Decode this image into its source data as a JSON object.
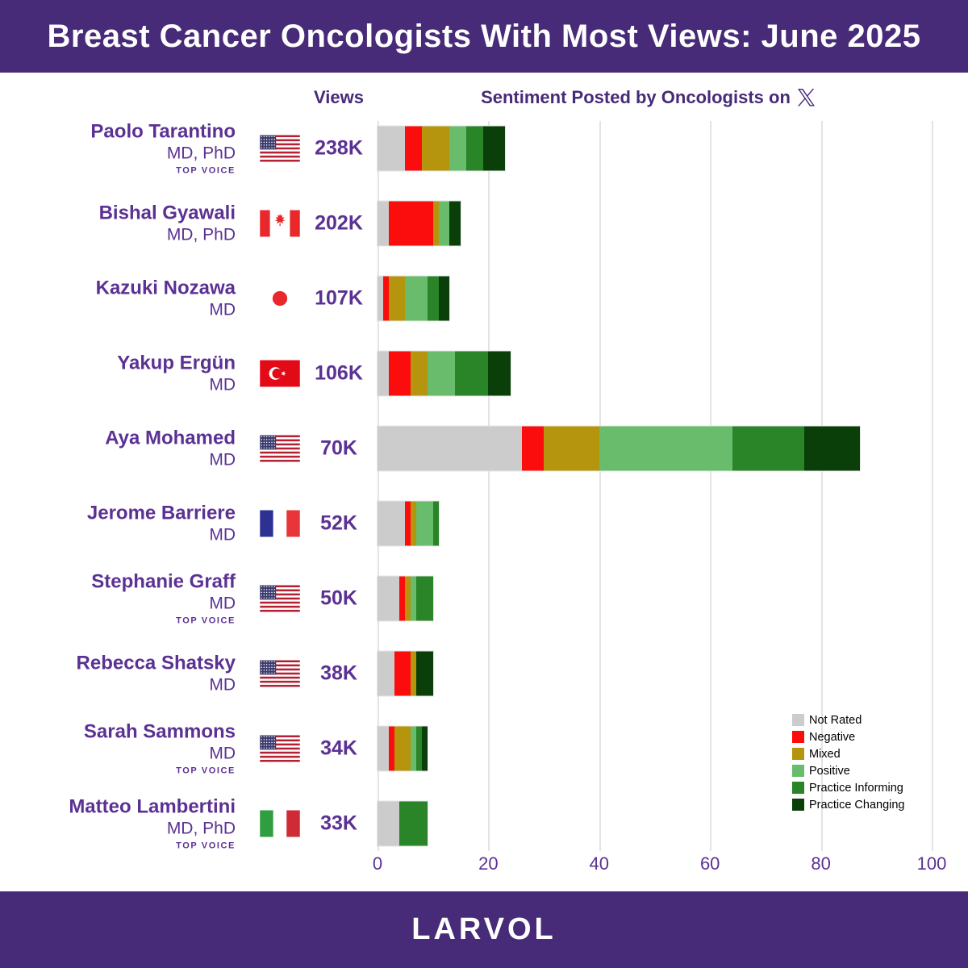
{
  "header": {
    "title": "Breast Cancer Oncologists With Most Views: June 2025"
  },
  "columns": {
    "views_label": "Views",
    "sentiment_label": "Sentiment Posted by Oncologists on",
    "sentiment_platform": "X"
  },
  "top_voice_label": "TOP VOICE",
  "rows": [
    {
      "name": "Paolo Tarantino",
      "credentials": "MD, PhD",
      "top_voice": true,
      "country": "us",
      "country_name": "United States",
      "views": "238K"
    },
    {
      "name": "Bishal Gyawali",
      "credentials": "MD, PhD",
      "top_voice": false,
      "country": "ca",
      "country_name": "Canada",
      "views": "202K"
    },
    {
      "name": "Kazuki Nozawa",
      "credentials": "MD",
      "top_voice": false,
      "country": "jp",
      "country_name": "Japan",
      "views": "107K"
    },
    {
      "name": "Yakup Ergün",
      "credentials": "MD",
      "top_voice": false,
      "country": "tr",
      "country_name": "Turkey",
      "views": "106K"
    },
    {
      "name": "Aya Mohamed",
      "credentials": "MD",
      "top_voice": false,
      "country": "us",
      "country_name": "United States",
      "views": "70K"
    },
    {
      "name": "Jerome Barriere",
      "credentials": "MD",
      "top_voice": false,
      "country": "fr",
      "country_name": "France",
      "views": "52K"
    },
    {
      "name": "Stephanie Graff",
      "credentials": "MD",
      "top_voice": true,
      "country": "us",
      "country_name": "United States",
      "views": "50K"
    },
    {
      "name": "Rebecca Shatsky",
      "credentials": "MD",
      "top_voice": false,
      "country": "us",
      "country_name": "United States",
      "views": "38K"
    },
    {
      "name": "Sarah Sammons",
      "credentials": "MD",
      "top_voice": true,
      "country": "us",
      "country_name": "United States",
      "views": "34K"
    },
    {
      "name": "Matteo Lambertini",
      "credentials": "MD, PhD",
      "top_voice": true,
      "country": "it",
      "country_name": "Italy",
      "views": "33K"
    }
  ],
  "chart_data": {
    "type": "bar",
    "orientation": "horizontal-stacked",
    "title": "Sentiment Posted by Oncologists on X",
    "categories": [
      "Paolo Tarantino",
      "Bishal Gyawali",
      "Kazuki Nozawa",
      "Yakup Ergün",
      "Aya Mohamed",
      "Jerome Barriere",
      "Stephanie Graff",
      "Rebecca Shatsky",
      "Sarah Sammons",
      "Matteo Lambertini"
    ],
    "series": [
      {
        "name": "Not Rated",
        "color": "#cccccc",
        "values": [
          5,
          2,
          1,
          2,
          26,
          5,
          4,
          3,
          2,
          4
        ]
      },
      {
        "name": "Negative",
        "color": "#fb0d0d",
        "values": [
          3,
          8,
          1,
          4,
          4,
          1,
          1,
          3,
          1,
          0
        ]
      },
      {
        "name": "Mixed",
        "color": "#b5950d",
        "values": [
          5,
          1,
          3,
          3,
          10,
          1,
          1,
          1,
          3,
          0
        ]
      },
      {
        "name": "Positive",
        "color": "#68bc6b",
        "values": [
          3,
          2,
          4,
          5,
          24,
          3,
          1,
          0,
          1,
          0
        ]
      },
      {
        "name": "Practice Informing",
        "color": "#2a8428",
        "values": [
          3,
          0,
          2,
          6,
          13,
          1,
          3,
          0,
          1,
          5
        ]
      },
      {
        "name": "Practice Changing",
        "color": "#0b3f09",
        "values": [
          4,
          2,
          2,
          4,
          10,
          0,
          0,
          3,
          1,
          0
        ]
      }
    ],
    "totals": [
      23,
      15,
      13,
      24,
      87,
      11,
      10,
      10,
      9,
      9
    ],
    "xlim": [
      0,
      100
    ],
    "x_ticks": [
      0,
      20,
      40,
      60,
      80,
      100
    ],
    "grid": true,
    "legend_position": "bottom-right"
  },
  "footer": {
    "logo": "LARVOL"
  },
  "colors": {
    "banner_purple": "#472a78",
    "text_purple": "#5b3193",
    "gridline": "#e3e3e3",
    "legend_text": "#000000"
  }
}
